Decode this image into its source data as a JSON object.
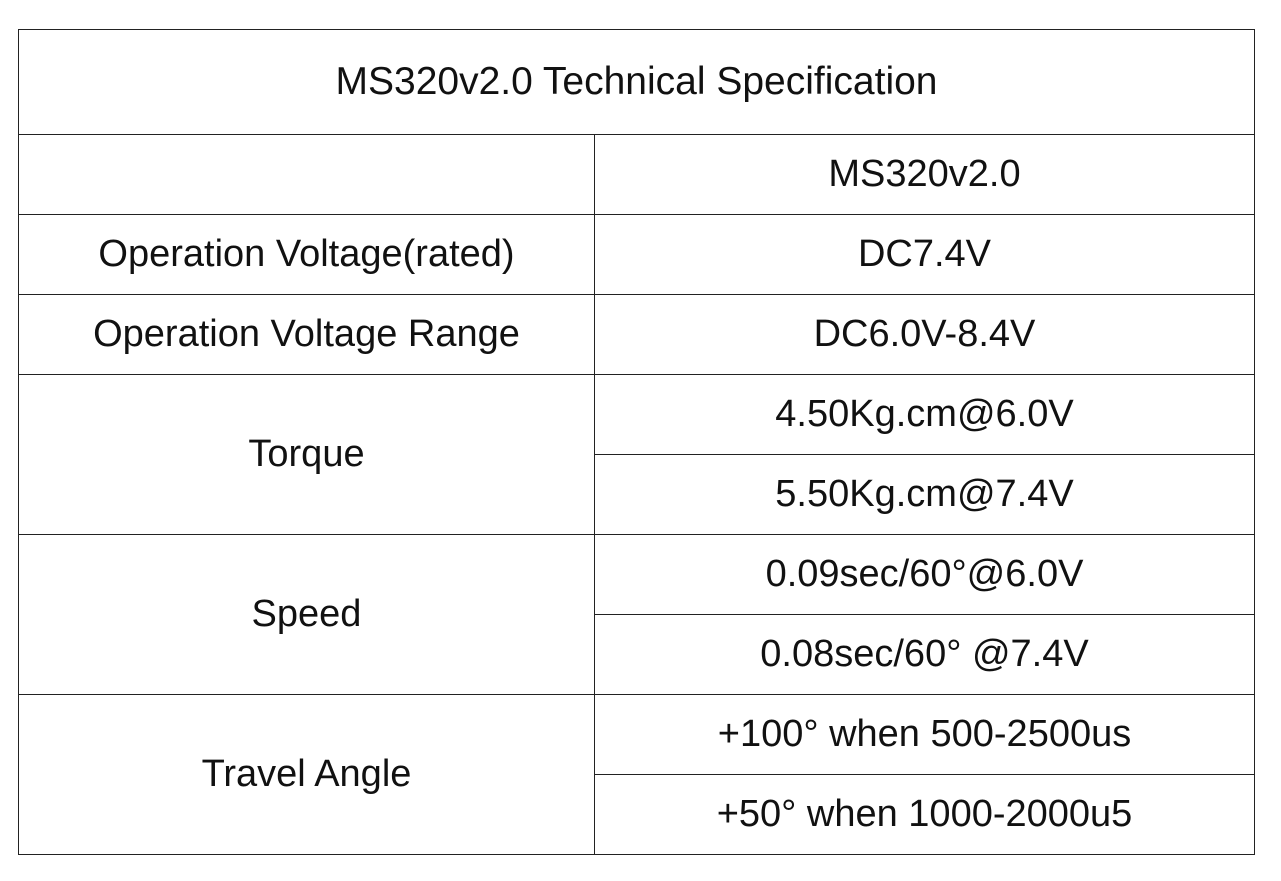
{
  "title": "MS320v2.0 Technical Specification",
  "header": {
    "column": "MS320v2.0"
  },
  "rows": [
    {
      "label": "Operation Voltage(rated)",
      "values": [
        "DC7.4V"
      ]
    },
    {
      "label": "Operation Voltage Range",
      "values": [
        "DC6.0V-8.4V"
      ]
    },
    {
      "label": "Torque",
      "values": [
        "4.50Kg.cm@6.0V",
        "5.50Kg.cm@7.4V"
      ]
    },
    {
      "label": "Speed",
      "values": [
        "0.09sec/60°@6.0V",
        "0.08sec/60° @7.4V"
      ]
    },
    {
      "label": "Travel Angle",
      "values": [
        "+100° when 500-2500us",
        "+50° when 1000-2000u5"
      ]
    }
  ]
}
